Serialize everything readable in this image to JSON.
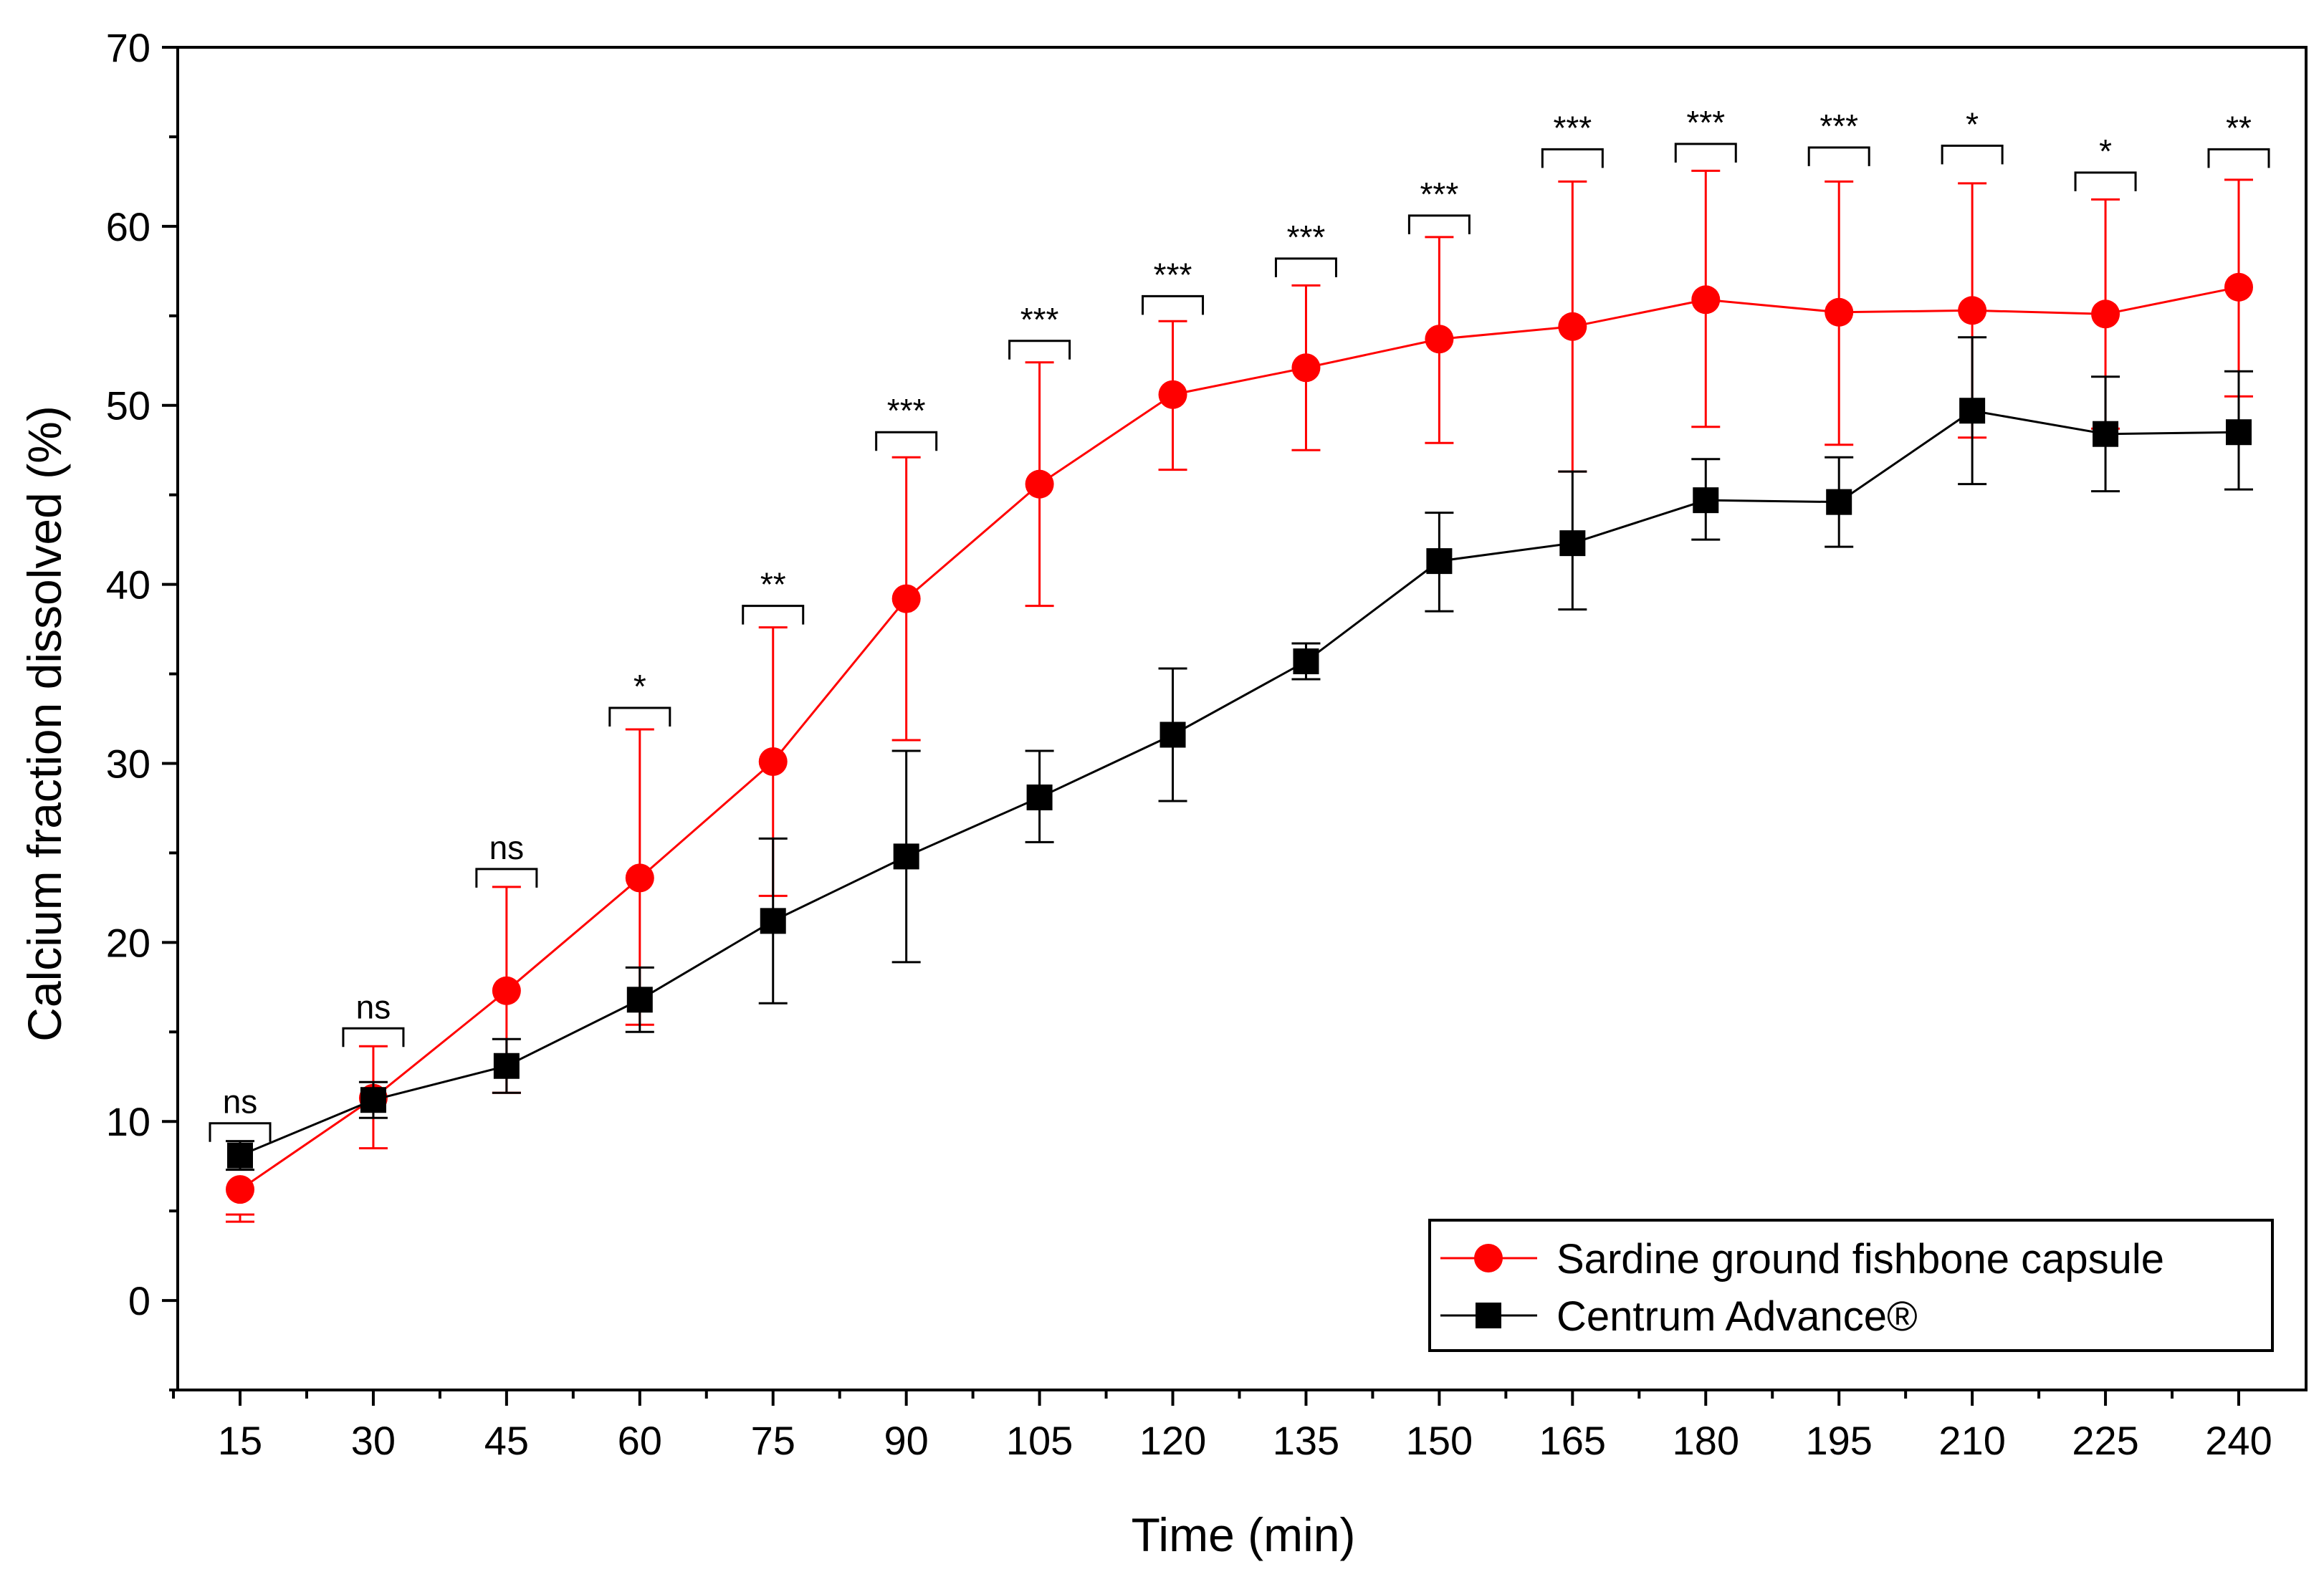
{
  "chart_data": {
    "type": "line",
    "title": "",
    "xlabel": "Time (min)",
    "ylabel": "Calcium fraction dissolved (%)",
    "ylim": [
      -5,
      70
    ],
    "yticks": [
      0,
      10,
      20,
      30,
      40,
      50,
      60,
      70
    ],
    "x": [
      15,
      30,
      45,
      60,
      75,
      90,
      105,
      120,
      135,
      150,
      165,
      180,
      195,
      210,
      225,
      240
    ],
    "xtick_labels": [
      "15",
      "30",
      "45",
      "60",
      "75",
      "90",
      "105",
      "120",
      "135",
      "150",
      "165",
      "180",
      "195",
      "210",
      "225",
      "240"
    ],
    "legend_position": "bottom-right",
    "series": [
      {
        "name": "Sardine ground fishbone capsule",
        "color": "#ff0000",
        "marker": "circle",
        "values": [
          6.2,
          11.3,
          17.3,
          23.6,
          30.1,
          39.2,
          45.6,
          50.6,
          52.1,
          53.7,
          54.4,
          55.9,
          55.2,
          55.3,
          55.1,
          56.6
        ],
        "err_upper": [
          4.8,
          14.2,
          23.1,
          31.9,
          37.6,
          47.1,
          52.4,
          54.7,
          56.7,
          59.4,
          62.5,
          63.1,
          62.5,
          62.4,
          61.5,
          62.6
        ],
        "err_lower": [
          4.4,
          8.5,
          11.6,
          15.4,
          22.6,
          31.3,
          38.8,
          46.4,
          47.5,
          47.9,
          46.3,
          48.8,
          47.8,
          48.2,
          48.7,
          50.5
        ]
      },
      {
        "name": "Centrum Advance®",
        "color": "#000000",
        "marker": "square",
        "values": [
          8.1,
          11.2,
          13.1,
          16.8,
          21.2,
          24.8,
          28.1,
          31.6,
          35.7,
          41.3,
          42.3,
          44.7,
          44.6,
          49.7,
          48.4,
          48.5
        ],
        "err_upper": [
          8.9,
          12.2,
          14.6,
          18.6,
          25.8,
          30.7,
          30.7,
          35.3,
          36.7,
          44.0,
          46.3,
          47.0,
          47.1,
          53.8,
          51.6,
          51.9
        ],
        "err_lower": [
          7.3,
          10.2,
          11.6,
          15.0,
          16.6,
          18.9,
          25.6,
          27.9,
          34.7,
          38.5,
          38.6,
          42.5,
          42.1,
          45.6,
          45.2,
          45.3
        ]
      }
    ],
    "annotations": [
      {
        "x": 15,
        "label": "ns",
        "bracket_y": 9.9
      },
      {
        "x": 30,
        "label": "ns",
        "bracket_y": 15.2
      },
      {
        "x": 45,
        "label": "ns",
        "bracket_y": 24.1
      },
      {
        "x": 60,
        "label": "*",
        "bracket_y": 33.1
      },
      {
        "x": 75,
        "label": "**",
        "bracket_y": 38.8
      },
      {
        "x": 90,
        "label": "***",
        "bracket_y": 48.5
      },
      {
        "x": 105,
        "label": "***",
        "bracket_y": 53.6
      },
      {
        "x": 120,
        "label": "***",
        "bracket_y": 56.1
      },
      {
        "x": 135,
        "label": "***",
        "bracket_y": 58.2
      },
      {
        "x": 150,
        "label": "***",
        "bracket_y": 60.6
      },
      {
        "x": 165,
        "label": "***",
        "bracket_y": 64.3
      },
      {
        "x": 180,
        "label": "***",
        "bracket_y": 64.6
      },
      {
        "x": 195,
        "label": "***",
        "bracket_y": 64.4
      },
      {
        "x": 210,
        "label": "*",
        "bracket_y": 64.5
      },
      {
        "x": 225,
        "label": "*",
        "bracket_y": 63.0
      },
      {
        "x": 240,
        "label": "**",
        "bracket_y": 64.3
      }
    ]
  }
}
